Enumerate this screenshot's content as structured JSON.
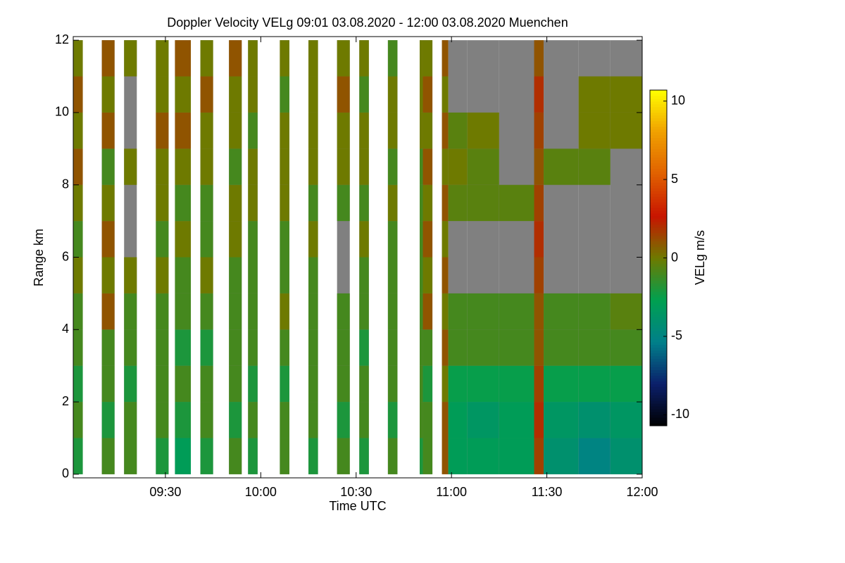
{
  "chart_data": {
    "type": "heatmap",
    "title": "Doppler Velocity VELg   09:01 03.08.2020 - 12:00 03.08.2020 Muenchen",
    "xlabel": "Time UTC",
    "ylabel": "Range km",
    "colorbar_label": "VELg m/s",
    "xlim": [
      "09:01",
      "12:00"
    ],
    "xticks": [
      "09:30",
      "10:00",
      "10:30",
      "11:00",
      "11:30",
      "12:00"
    ],
    "ylim": [
      -0.1,
      12.1
    ],
    "yticks": [
      0,
      2,
      4,
      6,
      8,
      10,
      12
    ],
    "zlim": [
      -10.7,
      10.7
    ],
    "zticks": [
      -10,
      -5,
      0,
      5,
      10
    ],
    "colormap": [
      "#000000",
      "#0b1f6b",
      "#00808a",
      "#00a050",
      "#6e7a00",
      "#c81400",
      "#e06000",
      "#f0a000",
      "#ffff00"
    ],
    "no_signal_color": "#808080",
    "ybins": [
      0,
      1,
      2,
      3,
      4,
      5,
      6,
      7,
      8,
      9,
      10,
      11,
      12
    ],
    "segments": [
      {
        "start": "09:01",
        "end": "09:04",
        "values": [
          -2,
          -1,
          -2,
          -1,
          -1,
          0,
          -1,
          0,
          1,
          0,
          1,
          0
        ]
      },
      {
        "start": "09:10",
        "end": "09:14",
        "values": [
          -1,
          -2,
          -1,
          -1,
          1,
          0,
          1,
          0,
          -1,
          1,
          0,
          1
        ]
      },
      {
        "start": "09:17",
        "end": "09:21",
        "values": [
          -1,
          -1,
          -2,
          -1,
          -1,
          0,
          null,
          null,
          0,
          null,
          null,
          0
        ]
      },
      {
        "start": "09:27",
        "end": "09:31",
        "values": [
          -2,
          -1,
          -1,
          -1,
          -1,
          0,
          -1,
          0,
          0,
          1,
          0,
          0
        ]
      },
      {
        "start": "09:33",
        "end": "09:38",
        "values": [
          -3,
          -2,
          -1,
          -2,
          -1,
          -1,
          0,
          -1,
          0,
          1,
          0,
          1
        ]
      },
      {
        "start": "09:41",
        "end": "09:45",
        "values": [
          -2,
          -1,
          -1,
          -2,
          -1,
          0,
          -1,
          -1,
          0,
          0,
          1,
          0
        ]
      },
      {
        "start": "09:50",
        "end": "09:54",
        "values": [
          -1,
          -2,
          -1,
          -1,
          -1,
          -1,
          0,
          0,
          -1,
          0,
          0,
          1
        ]
      },
      {
        "start": "09:56",
        "end": "09:59",
        "values": [
          -2,
          -1,
          -2,
          -1,
          -1,
          -1,
          -1,
          0,
          0,
          -1,
          0,
          0
        ]
      },
      {
        "start": "10:06",
        "end": "10:09",
        "values": [
          -1,
          -1,
          -2,
          -1,
          0,
          -1,
          -1,
          0,
          0,
          0,
          -1,
          0
        ]
      },
      {
        "start": "10:15",
        "end": "10:18",
        "values": [
          -2,
          -1,
          -1,
          -1,
          -1,
          -1,
          0,
          -1,
          0,
          0,
          0,
          0
        ]
      },
      {
        "start": "10:24",
        "end": "10:28",
        "values": [
          -1,
          -2,
          -1,
          -1,
          -1,
          null,
          null,
          -1,
          0,
          0,
          1,
          0
        ]
      },
      {
        "start": "10:31",
        "end": "10:34",
        "values": [
          -2,
          -1,
          -1,
          -2,
          -1,
          -1,
          0,
          -1,
          0,
          0,
          -1,
          0
        ]
      },
      {
        "start": "10:40",
        "end": "10:43",
        "values": [
          -1,
          -2,
          -1,
          -1,
          -1,
          -1,
          -1,
          0,
          -1,
          0,
          0,
          -1
        ]
      },
      {
        "start": "10:50",
        "end": "10:51",
        "values": [
          -2,
          -1,
          -1,
          -1,
          -1,
          -1,
          -1,
          -1,
          -1,
          0,
          0,
          0
        ]
      },
      {
        "start": "10:51",
        "end": "10:54",
        "values": [
          -1,
          -1,
          -2,
          -1,
          1,
          0,
          1,
          0,
          1,
          0,
          1,
          0
        ]
      },
      {
        "start": "10:57",
        "end": "10:59",
        "values": [
          1,
          1,
          0,
          1,
          0,
          1,
          0,
          1,
          0,
          1,
          0,
          1
        ]
      },
      {
        "start": "10:59",
        "end": "11:05",
        "values": [
          -3,
          -3,
          -2.5,
          -1,
          -1,
          null,
          null,
          -0.5,
          0,
          -0.5,
          null,
          null
        ]
      },
      {
        "start": "11:05",
        "end": "11:15",
        "values": [
          -3,
          -3.5,
          -2.5,
          -1,
          -1,
          null,
          null,
          -0.5,
          -0.5,
          0,
          null,
          null
        ]
      },
      {
        "start": "11:15",
        "end": "11:26",
        "values": [
          -3,
          -3,
          -2.5,
          -1,
          -1,
          null,
          null,
          -0.5,
          null,
          null,
          null,
          null
        ]
      },
      {
        "start": "11:26",
        "end": "11:29",
        "values": [
          1.5,
          2,
          1.5,
          1,
          1,
          1.5,
          2,
          1.5,
          1,
          1.5,
          2,
          1
        ]
      },
      {
        "start": "11:29",
        "end": "11:40",
        "values": [
          -4,
          -3.5,
          -2.5,
          -1,
          -1,
          null,
          null,
          null,
          -0.5,
          null,
          null,
          null
        ]
      },
      {
        "start": "11:40",
        "end": "11:50",
        "values": [
          -5,
          -4,
          -2.5,
          -1,
          -1,
          null,
          null,
          null,
          -0.5,
          0,
          0,
          null
        ]
      },
      {
        "start": "11:50",
        "end": "12:00",
        "values": [
          -4,
          -3.5,
          -2.5,
          -1,
          -0.5,
          null,
          null,
          null,
          null,
          0,
          0,
          null
        ]
      }
    ]
  }
}
